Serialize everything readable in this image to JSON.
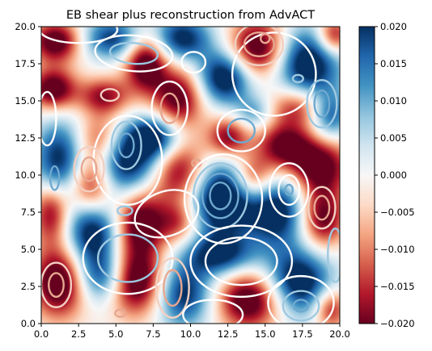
{
  "chart_data": {
    "type": "heatmap",
    "title": "EB shear plus reconstruction from AdvACT",
    "xlabel": "",
    "ylabel": "",
    "xlim": [
      0,
      20
    ],
    "ylim": [
      0,
      20
    ],
    "x_ticks": [
      0,
      2.5,
      5,
      7.5,
      10,
      12.5,
      15,
      17.5,
      20
    ],
    "x_tick_labels": [
      "0.0",
      "2.5",
      "5.0",
      "7.5",
      "10.0",
      "12.5",
      "15.0",
      "17.5",
      "20.0"
    ],
    "y_ticks": [
      0,
      2.5,
      5,
      7.5,
      10,
      12.5,
      15,
      17.5,
      20
    ],
    "y_tick_labels": [
      "0.0",
      "2.5",
      "5.0",
      "7.5",
      "10.0",
      "12.5",
      "15.0",
      "17.5",
      "20.0"
    ],
    "colormap": "RdBu",
    "color_low": "#67001f",
    "color_mid": "#f7f7f7",
    "color_high": "#053061",
    "colorbar": {
      "vmin": -0.02,
      "vmax": 0.02,
      "ticks": [
        0.02,
        0.015,
        0.01,
        0.005,
        0.0,
        -0.005,
        -0.01,
        -0.015,
        -0.02
      ],
      "tick_labels": [
        "0.020",
        "0.015",
        "0.010",
        "0.005",
        "0.000",
        "−0.005",
        "−0.010",
        "−0.015",
        "−0.020"
      ]
    },
    "heatmap_blobs": [
      {
        "x": 1.0,
        "y": 19.0,
        "amp": -0.024,
        "sx": 1.2,
        "sy": 1.0
      },
      {
        "x": 4.8,
        "y": 19.2,
        "amp": 0.02,
        "sx": 1.5,
        "sy": 1.0
      },
      {
        "x": 7.0,
        "y": 17.6,
        "amp": -0.026,
        "sx": 1.0,
        "sy": 1.4
      },
      {
        "x": 9.4,
        "y": 19.2,
        "amp": 0.022,
        "sx": 1.4,
        "sy": 1.1
      },
      {
        "x": 12.3,
        "y": 16.6,
        "amp": 0.026,
        "sx": 1.3,
        "sy": 1.3
      },
      {
        "x": 14.5,
        "y": 18.5,
        "amp": -0.026,
        "sx": 1.4,
        "sy": 1.4
      },
      {
        "x": 17.8,
        "y": 17.5,
        "amp": 0.026,
        "sx": 1.6,
        "sy": 1.7
      },
      {
        "x": 19.6,
        "y": 19.4,
        "amp": -0.02,
        "sx": 0.8,
        "sy": 0.9
      },
      {
        "x": 0.8,
        "y": 15.8,
        "amp": -0.024,
        "sx": 1.1,
        "sy": 1.0
      },
      {
        "x": 4.2,
        "y": 15.3,
        "amp": -0.018,
        "sx": 1.2,
        "sy": 0.9
      },
      {
        "x": 9.2,
        "y": 15.2,
        "amp": -0.022,
        "sx": 1.2,
        "sy": 1.5
      },
      {
        "x": 17.3,
        "y": 14.6,
        "amp": -0.018,
        "sx": 1.5,
        "sy": 1.0
      },
      {
        "x": 19.3,
        "y": 14.0,
        "amp": 0.02,
        "sx": 1.0,
        "sy": 1.2
      },
      {
        "x": 1.2,
        "y": 10.8,
        "amp": 0.022,
        "sx": 1.2,
        "sy": 2.0
      },
      {
        "x": 3.9,
        "y": 12.4,
        "amp": -0.016,
        "sx": 1.1,
        "sy": 1.2
      },
      {
        "x": 3.3,
        "y": 9.3,
        "amp": -0.026,
        "sx": 1.1,
        "sy": 1.6
      },
      {
        "x": 5.8,
        "y": 10.8,
        "amp": 0.026,
        "sx": 2.0,
        "sy": 1.6
      },
      {
        "x": 7.6,
        "y": 12.6,
        "amp": 0.022,
        "sx": 1.3,
        "sy": 1.0
      },
      {
        "x": 9.2,
        "y": 10.2,
        "amp": -0.026,
        "sx": 1.5,
        "sy": 1.6
      },
      {
        "x": 12.5,
        "y": 12.5,
        "amp": -0.02,
        "sx": 1.0,
        "sy": 1.0
      },
      {
        "x": 14.3,
        "y": 14.2,
        "amp": 0.012,
        "sx": 0.9,
        "sy": 0.8
      },
      {
        "x": 16.2,
        "y": 12.0,
        "amp": -0.02,
        "sx": 1.3,
        "sy": 1.1
      },
      {
        "x": 18.6,
        "y": 10.6,
        "amp": -0.024,
        "sx": 1.5,
        "sy": 1.5
      },
      {
        "x": 0.7,
        "y": 7.6,
        "amp": -0.022,
        "sx": 0.9,
        "sy": 1.5
      },
      {
        "x": 3.4,
        "y": 6.4,
        "amp": 0.026,
        "sx": 1.3,
        "sy": 1.6
      },
      {
        "x": 6.6,
        "y": 6.8,
        "amp": -0.024,
        "sx": 1.2,
        "sy": 1.6
      },
      {
        "x": 9.2,
        "y": 6.8,
        "amp": -0.014,
        "sx": 1.0,
        "sy": 1.0
      },
      {
        "x": 12.0,
        "y": 8.5,
        "amp": 0.03,
        "sx": 1.6,
        "sy": 1.9
      },
      {
        "x": 14.2,
        "y": 9.8,
        "amp": -0.02,
        "sx": 1.0,
        "sy": 1.1
      },
      {
        "x": 15.8,
        "y": 7.6,
        "amp": 0.024,
        "sx": 1.5,
        "sy": 1.7
      },
      {
        "x": 18.8,
        "y": 7.0,
        "amp": -0.022,
        "sx": 1.1,
        "sy": 1.4
      },
      {
        "x": 1.2,
        "y": 2.8,
        "amp": -0.026,
        "sx": 1.3,
        "sy": 1.7
      },
      {
        "x": 4.0,
        "y": 3.2,
        "amp": 0.02,
        "sx": 1.2,
        "sy": 1.3
      },
      {
        "x": 6.4,
        "y": 2.8,
        "amp": -0.026,
        "sx": 1.4,
        "sy": 1.6
      },
      {
        "x": 9.5,
        "y": 2.0,
        "amp": 0.022,
        "sx": 1.4,
        "sy": 1.6
      },
      {
        "x": 12.0,
        "y": 4.6,
        "amp": 0.02,
        "sx": 1.6,
        "sy": 1.0
      },
      {
        "x": 14.0,
        "y": 1.6,
        "amp": -0.026,
        "sx": 1.6,
        "sy": 1.4
      },
      {
        "x": 17.2,
        "y": 2.8,
        "amp": 0.026,
        "sx": 1.6,
        "sy": 1.6
      },
      {
        "x": 19.4,
        "y": 1.0,
        "amp": -0.018,
        "sx": 0.8,
        "sy": 1.0
      }
    ],
    "contours": [
      {
        "cx": 15.6,
        "cy": 16.8,
        "rx": 2.8,
        "ry": 2.8,
        "rot": 10,
        "color": "#ffffff"
      },
      {
        "cx": 14.6,
        "cy": 18.8,
        "rx": 1.0,
        "ry": 0.8,
        "rot": 0,
        "color": "#e7a790"
      },
      {
        "cx": 14.6,
        "cy": 18.8,
        "rx": 1.6,
        "ry": 1.4,
        "rot": 0,
        "color": "#f2d0c2"
      },
      {
        "cx": 15.0,
        "cy": 19.2,
        "rx": 0.3,
        "ry": 0.3,
        "rot": 0,
        "color": "#e7a790"
      },
      {
        "cx": 6.2,
        "cy": 18.2,
        "rx": 1.6,
        "ry": 0.7,
        "rot": -5,
        "color": "#9ec9e1"
      },
      {
        "cx": 6.2,
        "cy": 18.2,
        "rx": 2.6,
        "ry": 1.2,
        "rot": -5,
        "color": "#ffffff"
      },
      {
        "cx": 2.5,
        "cy": 19.8,
        "rx": 2.6,
        "ry": 0.9,
        "rot": 0,
        "color": "#ffffff"
      },
      {
        "cx": 17.2,
        "cy": 16.5,
        "rx": 0.35,
        "ry": 0.25,
        "rot": 0,
        "color": "#9ec9e1"
      },
      {
        "cx": 4.6,
        "cy": 15.4,
        "rx": 0.6,
        "ry": 0.4,
        "rot": 0,
        "color": "#f2d0c2"
      },
      {
        "cx": 8.6,
        "cy": 14.5,
        "rx": 0.6,
        "ry": 1.0,
        "rot": 0,
        "color": "#e7a790"
      },
      {
        "cx": 8.6,
        "cy": 14.5,
        "rx": 1.2,
        "ry": 1.8,
        "rot": 0,
        "color": "#ffffff"
      },
      {
        "cx": 13.4,
        "cy": 13.0,
        "rx": 0.9,
        "ry": 0.8,
        "rot": 0,
        "color": "#6fa9cf"
      },
      {
        "cx": 13.4,
        "cy": 13.0,
        "rx": 1.6,
        "ry": 1.4,
        "rot": 0,
        "color": "#ffffff"
      },
      {
        "cx": 18.8,
        "cy": 14.8,
        "rx": 0.5,
        "ry": 0.9,
        "rot": 0,
        "color": "#6fa9cf"
      },
      {
        "cx": 18.8,
        "cy": 14.8,
        "rx": 1.0,
        "ry": 1.6,
        "rot": 0,
        "color": "#9ec9e1"
      },
      {
        "cx": 5.7,
        "cy": 12.0,
        "rx": 0.5,
        "ry": 0.8,
        "rot": 0,
        "color": "#6fa9cf"
      },
      {
        "cx": 5.7,
        "cy": 12.0,
        "rx": 1.0,
        "ry": 1.6,
        "rot": 0,
        "color": "#9ec9e1"
      },
      {
        "cx": 5.8,
        "cy": 11.0,
        "rx": 2.3,
        "ry": 3.0,
        "rot": 0,
        "color": "#ffffff"
      },
      {
        "cx": 3.2,
        "cy": 10.4,
        "rx": 0.5,
        "ry": 0.8,
        "rot": 0,
        "color": "#e7a790"
      },
      {
        "cx": 3.2,
        "cy": 10.4,
        "rx": 1.0,
        "ry": 1.5,
        "rot": 0,
        "color": "#f2d0c2"
      },
      {
        "cx": 0.9,
        "cy": 9.8,
        "rx": 0.3,
        "ry": 0.8,
        "rot": 0,
        "color": "#6fa9cf"
      },
      {
        "cx": 10.4,
        "cy": 10.8,
        "rx": 0.3,
        "ry": 0.25,
        "rot": 0,
        "color": "#e7a790"
      },
      {
        "cx": 12.0,
        "cy": 8.6,
        "rx": 0.7,
        "ry": 0.9,
        "rot": 0,
        "color": "#6fa9cf"
      },
      {
        "cx": 12.0,
        "cy": 8.6,
        "rx": 1.2,
        "ry": 1.5,
        "rot": 0,
        "color": "#6fa9cf"
      },
      {
        "cx": 12.0,
        "cy": 8.6,
        "rx": 1.8,
        "ry": 2.2,
        "rot": 0,
        "color": "#9ec9e1"
      },
      {
        "cx": 12.2,
        "cy": 8.4,
        "rx": 2.6,
        "ry": 3.0,
        "rot": 0,
        "color": "#ffffff"
      },
      {
        "cx": 16.6,
        "cy": 9.0,
        "rx": 0.25,
        "ry": 0.35,
        "rot": 0,
        "color": "#6fa9cf"
      },
      {
        "cx": 16.6,
        "cy": 9.0,
        "rx": 0.7,
        "ry": 1.0,
        "rot": 0,
        "color": "#ffffff"
      },
      {
        "cx": 16.6,
        "cy": 9.0,
        "rx": 1.3,
        "ry": 1.8,
        "rot": 0,
        "color": "#ffffff"
      },
      {
        "cx": 18.8,
        "cy": 7.8,
        "rx": 0.5,
        "ry": 0.8,
        "rot": 0,
        "color": "#e7a790"
      },
      {
        "cx": 18.8,
        "cy": 7.8,
        "rx": 0.9,
        "ry": 1.4,
        "rot": 0,
        "color": "#f2d0c2"
      },
      {
        "cx": 5.6,
        "cy": 7.6,
        "rx": 0.5,
        "ry": 0.3,
        "rot": 0,
        "color": "#9ec9e1"
      },
      {
        "cx": 8.4,
        "cy": 7.4,
        "rx": 2.2,
        "ry": 1.5,
        "rot": 20,
        "color": "#ffffff"
      },
      {
        "cx": 5.8,
        "cy": 4.4,
        "rx": 2.0,
        "ry": 1.6,
        "rot": 0,
        "color": "#9ec9e1"
      },
      {
        "cx": 5.8,
        "cy": 4.4,
        "rx": 3.0,
        "ry": 2.4,
        "rot": 0,
        "color": "#ffffff"
      },
      {
        "cx": 1.0,
        "cy": 2.6,
        "rx": 0.5,
        "ry": 0.8,
        "rot": 0,
        "color": "#e7a790"
      },
      {
        "cx": 1.0,
        "cy": 2.6,
        "rx": 1.0,
        "ry": 1.5,
        "rot": 0,
        "color": "#f2d0c2"
      },
      {
        "cx": 5.3,
        "cy": 0.7,
        "rx": 0.35,
        "ry": 0.25,
        "rot": 0,
        "color": "#e7a790"
      },
      {
        "cx": 8.8,
        "cy": 2.4,
        "rx": 0.6,
        "ry": 1.2,
        "rot": 0,
        "color": "#e7a790"
      },
      {
        "cx": 8.8,
        "cy": 2.4,
        "rx": 1.1,
        "ry": 2.0,
        "rot": 0,
        "color": "#f2d0c2"
      },
      {
        "cx": 13.4,
        "cy": 4.2,
        "rx": 2.4,
        "ry": 1.6,
        "rot": 0,
        "color": "#ffffff"
      },
      {
        "cx": 13.4,
        "cy": 4.2,
        "rx": 3.4,
        "ry": 2.4,
        "rot": 0,
        "color": "#ffffff"
      },
      {
        "cx": 17.4,
        "cy": 1.2,
        "rx": 0.5,
        "ry": 0.4,
        "rot": 0,
        "color": "#6fa9cf"
      },
      {
        "cx": 17.4,
        "cy": 1.2,
        "rx": 1.2,
        "ry": 1.0,
        "rot": 0,
        "color": "#9ec9e1"
      },
      {
        "cx": 17.4,
        "cy": 1.4,
        "rx": 2.2,
        "ry": 1.8,
        "rot": 0,
        "color": "#ffffff"
      },
      {
        "cx": 11.5,
        "cy": 0.6,
        "rx": 2.0,
        "ry": 1.0,
        "rot": 0,
        "color": "#ffffff"
      },
      {
        "cx": 19.7,
        "cy": 4.6,
        "rx": 0.5,
        "ry": 1.8,
        "rot": 0,
        "color": "#9ec9e1"
      },
      {
        "cx": 0.4,
        "cy": 13.8,
        "rx": 0.6,
        "ry": 1.8,
        "rot": 0,
        "color": "#ffffff"
      },
      {
        "cx": 10.2,
        "cy": 17.6,
        "rx": 0.8,
        "ry": 0.7,
        "rot": 0,
        "color": "#ffffff"
      }
    ]
  }
}
